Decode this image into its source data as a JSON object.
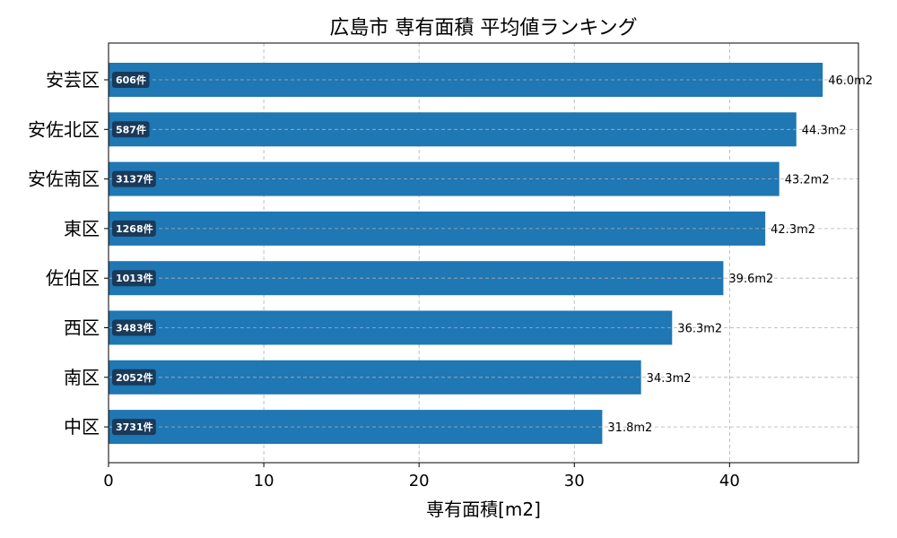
{
  "chart_data": {
    "type": "bar",
    "orientation": "horizontal",
    "title": "広島市 専有面積 平均値ランキング",
    "xlabel": "専有面積[m2]",
    "ylabel": "",
    "xlim": [
      0,
      48.3
    ],
    "xticks": [
      0,
      10,
      20,
      30,
      40
    ],
    "grid": true,
    "bar_color": "#1f77b4",
    "count_badge_color": "#1a3a5a",
    "categories": [
      "安芸区",
      "安佐北区",
      "安佐南区",
      "東区",
      "佐伯区",
      "西区",
      "南区",
      "中区"
    ],
    "values": [
      46.0,
      44.3,
      43.2,
      42.3,
      39.6,
      36.3,
      34.3,
      31.8
    ],
    "value_labels": [
      "46.0m2",
      "44.3m2",
      "43.2m2",
      "42.3m2",
      "39.6m2",
      "36.3m2",
      "34.3m2",
      "31.8m2"
    ],
    "count_labels": [
      "606件",
      "587件",
      "3137件",
      "1268件",
      "1013件",
      "3483件",
      "2052件",
      "3731件"
    ]
  }
}
